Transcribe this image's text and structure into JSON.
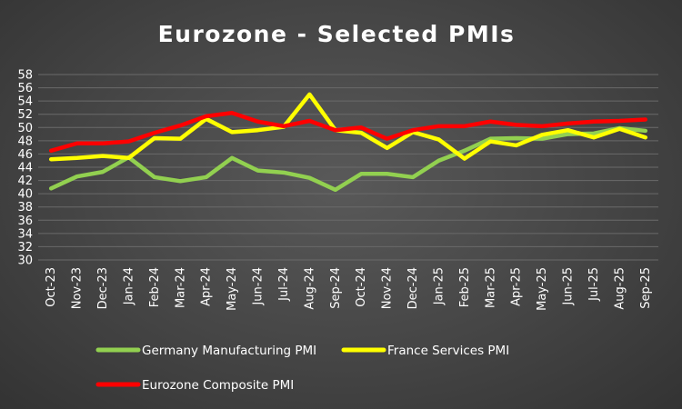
{
  "chart_data": {
    "type": "line",
    "title": "Eurozone - Selected PMIs",
    "xlabel": "",
    "ylabel": "",
    "ylim": [
      30,
      58
    ],
    "ytick_step": 2,
    "grid": true,
    "legend_position": "bottom",
    "categories": [
      "Oct-23",
      "Nov-23",
      "Dec-23",
      "Jan-24",
      "Feb-24",
      "Mar-24",
      "Apr-24",
      "May-24",
      "Jun-24",
      "Jul-24",
      "Aug-24",
      "Sep-24",
      "Oct-24",
      "Nov-24",
      "Dec-24",
      "Jan-25",
      "Feb-25",
      "Mar-25",
      "Apr-25",
      "May-25",
      "Jun-25",
      "Jul-25",
      "Aug-25",
      "Sep-25"
    ],
    "series": [
      {
        "name": "Germany Manufacturing PMI",
        "color": "#92d050",
        "values": [
          40.8,
          42.6,
          43.3,
          45.5,
          42.5,
          41.9,
          42.5,
          45.4,
          43.5,
          43.2,
          42.4,
          40.6,
          43.0,
          43.0,
          42.5,
          45.0,
          46.5,
          48.3,
          48.4,
          48.3,
          49.0,
          49.1,
          49.9,
          49.5
        ]
      },
      {
        "name": "France Services PMI",
        "color": "#ffff00",
        "values": [
          45.2,
          45.4,
          45.7,
          45.4,
          48.4,
          48.3,
          51.3,
          49.3,
          49.6,
          50.1,
          55.0,
          49.6,
          49.2,
          46.9,
          49.3,
          48.2,
          45.3,
          47.9,
          47.3,
          48.9,
          49.6,
          48.5,
          49.8,
          48.5
        ]
      },
      {
        "name": "Eurozone Composite PMI",
        "color": "#ff0000",
        "values": [
          46.5,
          47.6,
          47.6,
          47.9,
          49.2,
          50.3,
          51.7,
          52.2,
          50.9,
          50.2,
          51.0,
          49.6,
          50.0,
          48.3,
          49.6,
          50.2,
          50.2,
          50.9,
          50.4,
          50.2,
          50.6,
          50.9,
          51.0,
          51.2
        ]
      }
    ]
  }
}
